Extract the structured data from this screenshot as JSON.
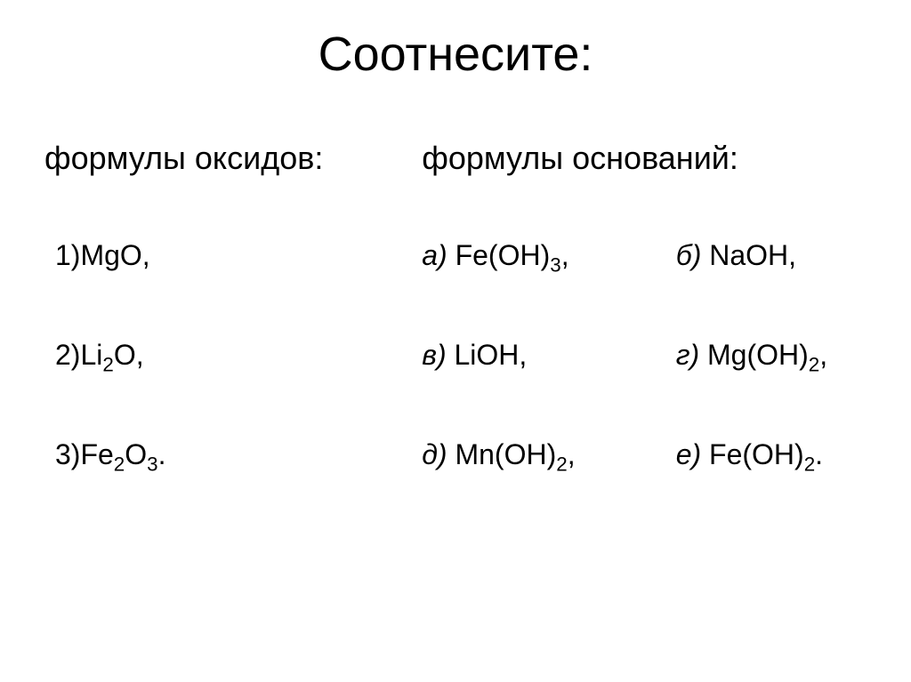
{
  "title": "Соотнесите:",
  "left": {
    "heading": "формулы оксидов:",
    "items": [
      {
        "num": "1)",
        "prefix": "",
        "formula": "MgO,"
      },
      {
        "num": "2)",
        "prefix": "",
        "formula": "Li||2||O,"
      },
      {
        "num": "3)",
        "prefix": "",
        "formula": "Fe||2||O||3||."
      }
    ]
  },
  "right": {
    "heading": "формулы оснований:",
    "rows": [
      {
        "a_label": "а) ",
        "a_formula": "Fe(OH)||3||,",
        "b_label": "б) ",
        "b_formula": "NaOH,"
      },
      {
        "a_label": "в) ",
        "a_formula": "LiOH,",
        "b_label": "г) ",
        "b_formula": "Mg(OH)||2||,"
      },
      {
        "a_label": "д) ",
        "a_formula": "Mn(OH)||2||,",
        "b_label": "е) ",
        "b_formula": "Fe(OH)||2||."
      }
    ]
  }
}
